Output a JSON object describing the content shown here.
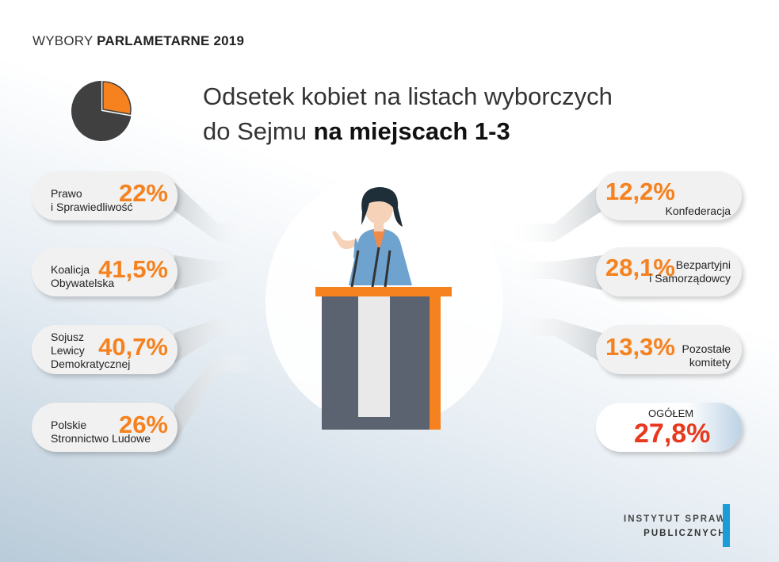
{
  "header": {
    "prefix": "WYBORY ",
    "bold": "PARLAMETARNE 2019"
  },
  "title": {
    "line1": "Odsetek  kobiet na listach wyborczych",
    "line2_normal": "do Sejmu ",
    "line2_bold": "na miejscach 1-3"
  },
  "colors": {
    "accent": "#f5821f",
    "total": "#e8391e",
    "dark": "#404040",
    "podium": "#5b6270",
    "logo_bar": "#1a9cd8"
  },
  "chart_data": {
    "type": "table",
    "rows": [
      {
        "party": "Prawo\ni Sprawiedliwość",
        "value": "22%",
        "pct": 22
      },
      {
        "party": "Koalicja\nObywatelska",
        "value": "41,5%",
        "pct": 41.5
      },
      {
        "party": "Sojusz\nLewicy\nDemokratycznej",
        "value": "40,7%",
        "pct": 40.7
      },
      {
        "party": "Polskie\nStronnictwo Ludowe",
        "value": "26%",
        "pct": 26
      },
      {
        "party": "Konfederacja",
        "value": "12,2%",
        "pct": 12.2
      },
      {
        "party": "Bezpartyjni\ni Samorządowcy",
        "value": "28,1%",
        "pct": 28.1
      },
      {
        "party": "Pozostałe\nkomitety",
        "value": "13,3%",
        "pct": 13.3
      }
    ],
    "total": {
      "label": "OGÓŁEM",
      "value": "27,8%",
      "pct": 27.8
    }
  },
  "logo": {
    "line1": "INSTYTUT SPRAW",
    "line2": "PUBLICZNYCH"
  }
}
